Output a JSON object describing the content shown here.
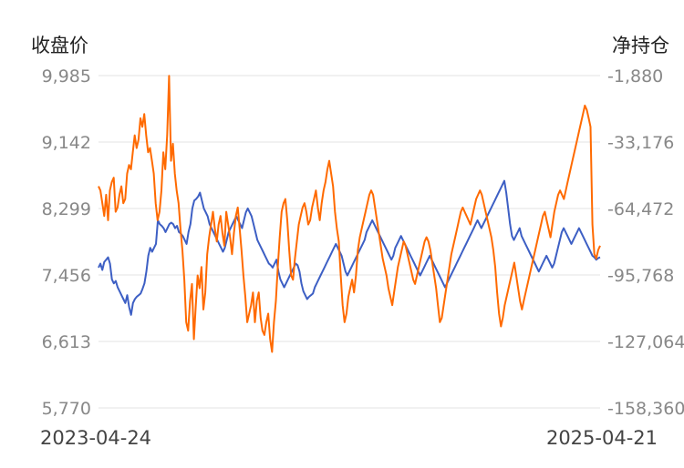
{
  "chart_data": {
    "type": "line",
    "left_axis_label": "收盘价",
    "right_axis_label": "净持仓",
    "x_tick_labels": [
      "2023-04-24",
      "2025-04-21"
    ],
    "y_left_ticks": [
      "9,985",
      "9,142",
      "8,299",
      "7,456",
      "6,613",
      "5,770"
    ],
    "y_right_ticks": [
      "-1,880",
      "-33,176",
      "-64,472",
      "-95,768",
      "-127,064",
      "-158,360"
    ],
    "y_left_range": [
      5770,
      9985
    ],
    "y_right_range": [
      -158360,
      -1880
    ],
    "grid": true,
    "series": [
      {
        "axis": "left",
        "color": "#3d5fc4",
        "values": [
          7550,
          7600,
          7520,
          7620,
          7650,
          7680,
          7600,
          7400,
          7350,
          7380,
          7300,
          7250,
          7200,
          7150,
          7100,
          7200,
          7050,
          6950,
          7100,
          7150,
          7180,
          7200,
          7220,
          7280,
          7350,
          7500,
          7700,
          7800,
          7750,
          7800,
          7850,
          8150,
          8100,
          8080,
          8050,
          8000,
          8050,
          8100,
          8120,
          8100,
          8050,
          8080,
          8000,
          7980,
          7950,
          7900,
          7850,
          8000,
          8100,
          8300,
          8400,
          8420,
          8450,
          8500,
          8400,
          8300,
          8250,
          8200,
          8100,
          8050,
          8000,
          7950,
          7900,
          7850,
          7800,
          7750,
          7800,
          7900,
          8000,
          8050,
          8100,
          8150,
          8200,
          8150,
          8100,
          8050,
          8150,
          8250,
          8300,
          8250,
          8200,
          8100,
          8000,
          7900,
          7850,
          7800,
          7750,
          7700,
          7650,
          7600,
          7580,
          7550,
          7600,
          7650,
          7500,
          7400,
          7350,
          7300,
          7350,
          7400,
          7450,
          7500,
          7550,
          7600,
          7580,
          7500,
          7350,
          7250,
          7200,
          7150,
          7180,
          7200,
          7220,
          7300,
          7350,
          7400,
          7450,
          7500,
          7550,
          7600,
          7650,
          7700,
          7750,
          7800,
          7850,
          7800,
          7750,
          7700,
          7600,
          7500,
          7450,
          7500,
          7550,
          7600,
          7650,
          7700,
          7750,
          7800,
          7850,
          7900,
          8000,
          8050,
          8100,
          8150,
          8100,
          8050,
          8000,
          7950,
          7900,
          7850,
          7800,
          7750,
          7700,
          7650,
          7700,
          7800,
          7850,
          7900,
          7950,
          7900,
          7850,
          7800,
          7750,
          7700,
          7650,
          7600,
          7550,
          7500,
          7450,
          7500,
          7550,
          7600,
          7650,
          7700,
          7650,
          7600,
          7550,
          7500,
          7450,
          7400,
          7350,
          7300,
          7350,
          7400,
          7450,
          7500,
          7550,
          7600,
          7650,
          7700,
          7750,
          7800,
          7850,
          7900,
          7950,
          8000,
          8050,
          8100,
          8150,
          8100,
          8050,
          8100,
          8150,
          8200,
          8250,
          8300,
          8350,
          8400,
          8450,
          8500,
          8550,
          8600,
          8650,
          8500,
          8300,
          8100,
          7950,
          7900,
          7950,
          8000,
          8050,
          7950,
          7900,
          7850,
          7800,
          7750,
          7700,
          7650,
          7600,
          7550,
          7500,
          7550,
          7600,
          7650,
          7700,
          7650,
          7600,
          7550,
          7600,
          7700,
          7800,
          7900,
          8000,
          8050,
          8000,
          7950,
          7900,
          7850,
          7900,
          7950,
          8000,
          8050,
          8000,
          7950,
          7900,
          7850,
          7800,
          7750,
          7700,
          7680,
          7650,
          7670,
          7680
        ]
      },
      {
        "axis": "right",
        "color": "#ff6a00",
        "values": [
          -54000,
          -56000,
          -62000,
          -68000,
          -58000,
          -70000,
          -56000,
          -52000,
          -50000,
          -66000,
          -64000,
          -58000,
          -54000,
          -62000,
          -60000,
          -48000,
          -44000,
          -46000,
          -38000,
          -30000,
          -36000,
          -32000,
          -22000,
          -26000,
          -20000,
          -30000,
          -38000,
          -36000,
          -42000,
          -48000,
          -62000,
          -70000,
          -66000,
          -56000,
          -38000,
          -46000,
          -30000,
          -2000,
          -42000,
          -34000,
          -48000,
          -56000,
          -62000,
          -74000,
          -84000,
          -98000,
          -118000,
          -122000,
          -108000,
          -100000,
          -126000,
          -110000,
          -96000,
          -102000,
          -92000,
          -112000,
          -104000,
          -86000,
          -78000,
          -72000,
          -66000,
          -74000,
          -80000,
          -72000,
          -68000,
          -76000,
          -82000,
          -66000,
          -72000,
          -78000,
          -86000,
          -76000,
          -68000,
          -64000,
          -74000,
          -84000,
          -96000,
          -106000,
          -118000,
          -114000,
          -110000,
          -104000,
          -118000,
          -108000,
          -104000,
          -116000,
          -122000,
          -124000,
          -118000,
          -114000,
          -126000,
          -132000,
          -118000,
          -108000,
          -92000,
          -78000,
          -66000,
          -62000,
          -60000,
          -70000,
          -84000,
          -96000,
          -98000,
          -88000,
          -80000,
          -72000,
          -68000,
          -64000,
          -62000,
          -66000,
          -72000,
          -70000,
          -64000,
          -60000,
          -56000,
          -64000,
          -70000,
          -62000,
          -56000,
          -52000,
          -46000,
          -42000,
          -48000,
          -54000,
          -66000,
          -74000,
          -80000,
          -96000,
          -110000,
          -118000,
          -114000,
          -106000,
          -102000,
          -98000,
          -104000,
          -96000,
          -84000,
          -78000,
          -74000,
          -70000,
          -66000,
          -62000,
          -58000,
          -56000,
          -58000,
          -64000,
          -70000,
          -76000,
          -82000,
          -88000,
          -92000,
          -96000,
          -102000,
          -106000,
          -110000,
          -104000,
          -98000,
          -92000,
          -88000,
          -84000,
          -80000,
          -82000,
          -86000,
          -90000,
          -94000,
          -98000,
          -100000,
          -96000,
          -92000,
          -88000,
          -84000,
          -80000,
          -78000,
          -80000,
          -84000,
          -90000,
          -96000,
          -102000,
          -110000,
          -118000,
          -116000,
          -110000,
          -104000,
          -98000,
          -92000,
          -86000,
          -82000,
          -78000,
          -74000,
          -70000,
          -66000,
          -64000,
          -66000,
          -68000,
          -70000,
          -72000,
          -68000,
          -64000,
          -60000,
          -58000,
          -56000,
          -58000,
          -62000,
          -66000,
          -70000,
          -74000,
          -78000,
          -84000,
          -92000,
          -104000,
          -114000,
          -120000,
          -116000,
          -110000,
          -106000,
          -102000,
          -98000,
          -94000,
          -90000,
          -96000,
          -102000,
          -108000,
          -112000,
          -108000,
          -104000,
          -100000,
          -96000,
          -92000,
          -88000,
          -84000,
          -80000,
          -76000,
          -72000,
          -68000,
          -66000,
          -70000,
          -74000,
          -78000,
          -72000,
          -66000,
          -62000,
          -58000,
          -56000,
          -58000,
          -60000,
          -56000,
          -52000,
          -48000,
          -44000,
          -40000,
          -36000,
          -32000,
          -28000,
          -24000,
          -20000,
          -16000,
          -18000,
          -22000,
          -26000,
          -72000,
          -86000,
          -88000,
          -84000,
          -82000
        ]
      }
    ]
  }
}
